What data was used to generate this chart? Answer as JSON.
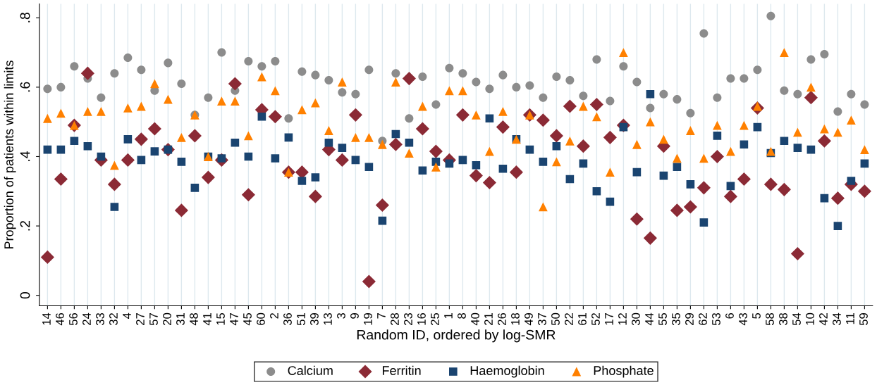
{
  "chart_data": {
    "type": "scatter",
    "xlabel": "Random ID, ordered by log-SMR",
    "ylabel": "Proportion of patients within limits",
    "categories": [
      "14",
      "46",
      "56",
      "24",
      "33",
      "32",
      "4",
      "27",
      "57",
      "20",
      "31",
      "48",
      "41",
      "15",
      "47",
      "45",
      "60",
      "2",
      "36",
      "51",
      "39",
      "13",
      "3",
      "9",
      "19",
      "7",
      "28",
      "23",
      "16",
      "25",
      "1",
      "8",
      "40",
      "21",
      "26",
      "18",
      "49",
      "37",
      "50",
      "22",
      "61",
      "52",
      "17",
      "12",
      "30",
      "44",
      "55",
      "35",
      "29",
      "62",
      "53",
      "6",
      "43",
      "5",
      "58",
      "38",
      "54",
      "10",
      "42",
      "34",
      "11",
      "59"
    ],
    "series": [
      {
        "name": "Calcium",
        "color": "#8c8c8c",
        "marker": "circle",
        "values": [
          0.595,
          0.6,
          0.66,
          0.625,
          0.57,
          0.64,
          0.685,
          0.65,
          0.59,
          0.67,
          0.61,
          0.52,
          0.57,
          0.7,
          0.59,
          0.675,
          0.66,
          0.675,
          0.51,
          0.645,
          0.635,
          0.62,
          0.585,
          0.58,
          0.65,
          0.445,
          0.64,
          0.51,
          0.63,
          0.55,
          0.655,
          0.64,
          0.615,
          0.595,
          0.635,
          0.6,
          0.605,
          0.57,
          0.63,
          0.62,
          0.575,
          0.68,
          0.56,
          0.66,
          0.615,
          0.54,
          0.58,
          0.565,
          0.525,
          0.755,
          0.57,
          0.625,
          0.625,
          0.65,
          0.805,
          0.59,
          0.58,
          0.68,
          0.695,
          0.53,
          0.58,
          0.55
        ]
      },
      {
        "name": "Ferritin",
        "color": "#8b2a35",
        "marker": "diamond",
        "values": [
          0.11,
          0.335,
          0.49,
          0.64,
          0.39,
          0.32,
          0.39,
          0.45,
          0.48,
          0.42,
          0.245,
          0.46,
          0.34,
          0.39,
          0.61,
          0.29,
          0.535,
          0.515,
          0.355,
          0.355,
          0.285,
          0.42,
          0.39,
          0.52,
          0.04,
          0.26,
          0.435,
          0.625,
          0.48,
          0.415,
          0.39,
          0.52,
          0.345,
          0.325,
          0.485,
          0.355,
          0.52,
          0.505,
          0.46,
          0.545,
          0.43,
          0.55,
          0.455,
          0.49,
          0.22,
          0.165,
          0.43,
          0.245,
          0.255,
          0.31,
          0.4,
          0.285,
          0.335,
          0.54,
          0.32,
          0.305,
          0.12,
          0.57,
          0.445,
          0.28,
          0.32,
          0.3
        ]
      },
      {
        "name": "Haemoglobin",
        "color": "#1a4470",
        "marker": "square",
        "values": [
          0.42,
          0.42,
          0.445,
          0.43,
          0.4,
          0.255,
          0.45,
          0.39,
          0.415,
          0.42,
          0.385,
          0.31,
          0.4,
          0.395,
          0.44,
          0.4,
          0.515,
          0.395,
          0.455,
          0.33,
          0.34,
          0.44,
          0.425,
          0.39,
          0.37,
          0.215,
          0.465,
          0.44,
          0.36,
          0.385,
          0.38,
          0.39,
          0.375,
          0.51,
          0.365,
          0.45,
          0.42,
          0.385,
          0.43,
          0.335,
          0.38,
          0.3,
          0.27,
          0.485,
          0.355,
          0.58,
          0.345,
          0.37,
          0.32,
          0.21,
          0.46,
          0.315,
          0.435,
          0.485,
          0.41,
          0.445,
          0.425,
          0.42,
          0.28,
          0.2,
          0.33,
          0.38
        ]
      },
      {
        "name": "Phosphate",
        "color": "#ff8000",
        "marker": "triangle",
        "values": [
          0.51,
          0.525,
          0.49,
          0.53,
          0.53,
          0.375,
          0.54,
          0.545,
          0.61,
          0.565,
          0.455,
          0.52,
          0.4,
          0.56,
          0.56,
          0.46,
          0.63,
          0.59,
          0.355,
          0.535,
          0.555,
          0.475,
          0.615,
          0.455,
          0.455,
          0.435,
          0.615,
          0.41,
          0.545,
          0.37,
          0.59,
          0.59,
          0.52,
          0.415,
          0.53,
          0.45,
          0.52,
          0.255,
          0.385,
          0.445,
          0.545,
          0.515,
          0.355,
          0.7,
          0.435,
          0.5,
          0.45,
          0.395,
          0.475,
          0.395,
          0.49,
          0.415,
          0.49,
          0.545,
          0.415,
          0.7,
          0.47,
          0.6,
          0.48,
          0.47,
          0.505,
          0.42
        ]
      }
    ],
    "ylim": [
      -0.03,
      0.84
    ],
    "yticks": [
      {
        "value": 0,
        "label": "0"
      },
      {
        "value": 0.2,
        "label": ".2"
      },
      {
        "value": 0.4,
        "label": ".4"
      },
      {
        "value": 0.6,
        "label": ".6"
      },
      {
        "value": 0.8,
        "label": ".8"
      }
    ],
    "grid": "x",
    "legend": "bottom"
  }
}
